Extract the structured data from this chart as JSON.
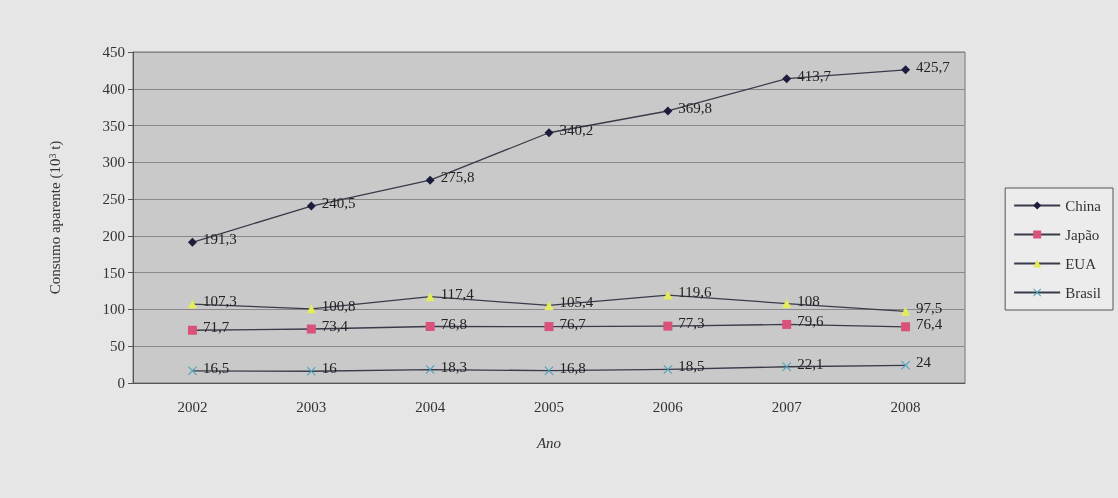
{
  "chart_data": {
    "type": "line",
    "xlabel": "Ano",
    "ylabel": "Consumo aparente (10$^{3}$ t)",
    "categories": [
      "2002",
      "2003",
      "2004",
      "2005",
      "2006",
      "2007",
      "2008"
    ],
    "series": [
      {
        "name": "China",
        "color": "#1c1c3c",
        "marker": "diamond",
        "values": [
          191.3,
          240.5,
          275.8,
          340.2,
          369.8,
          413.7,
          425.7
        ],
        "value_labels": [
          "191,3",
          "240,5",
          "275,8",
          "340,2",
          "369,8",
          "413,7",
          "425,7"
        ]
      },
      {
        "name": "Japão",
        "color": "#d9527a",
        "marker": "square",
        "values": [
          71.7,
          73.4,
          76.8,
          76.7,
          77.3,
          79.6,
          76.4
        ],
        "value_labels": [
          "71,7",
          "73,4",
          "76,8",
          "76,7",
          "77,3",
          "79,6",
          "76,4"
        ]
      },
      {
        "name": "EUA",
        "color": "#e4ec5a",
        "marker": "triangle",
        "values": [
          107.3,
          100.8,
          117.4,
          105.4,
          119.6,
          108,
          97.5
        ],
        "value_labels": [
          "107,3",
          "100,8",
          "117,4",
          "105,4",
          "119,6",
          "108",
          "97,5"
        ]
      },
      {
        "name": "Brasil",
        "color": "#4aa3bd",
        "marker": "cross",
        "values": [
          16.5,
          16,
          18.3,
          16.8,
          18.5,
          22.1,
          24
        ],
        "value_labels": [
          "16,5",
          "16",
          "18,3",
          "16,8",
          "18,5",
          "22,1",
          "24"
        ]
      }
    ],
    "ylim": [
      0,
      450
    ],
    "yticks": [
      0,
      50,
      100,
      150,
      200,
      250,
      300,
      350,
      400,
      450
    ],
    "grid": "y",
    "legend": "right"
  }
}
